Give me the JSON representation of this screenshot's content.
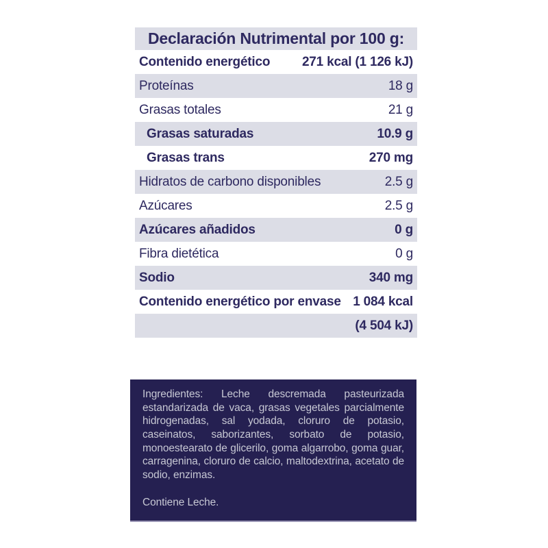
{
  "colors": {
    "text_navy": "#2e2960",
    "row_shaded_bg": "#dcdde6",
    "ingredients_box_bg": "#252051",
    "ingredients_text": "#c7c8d4",
    "page_bg": "#ffffff"
  },
  "nutrition_table": {
    "title": "Declaración Nutrimental por 100 g:",
    "rows": [
      {
        "label": "Contenido energético",
        "value": "271 kcal (1 126 kJ)",
        "bold": true,
        "shaded": false,
        "indent": false
      },
      {
        "label": "Proteínas",
        "value": "18 g",
        "bold": false,
        "shaded": true,
        "indent": false
      },
      {
        "label": "Grasas totales",
        "value": "21 g",
        "bold": false,
        "shaded": false,
        "indent": false
      },
      {
        "label": "Grasas saturadas",
        "value": "10.9 g",
        "bold": true,
        "shaded": true,
        "indent": true
      },
      {
        "label": "Grasas trans",
        "value": "270 mg",
        "bold": true,
        "shaded": false,
        "indent": true
      },
      {
        "label": "Hidratos de carbono disponibles",
        "value": "2.5 g",
        "bold": false,
        "shaded": true,
        "indent": false
      },
      {
        "label": "Azúcares",
        "value": "2.5 g",
        "bold": false,
        "shaded": false,
        "indent": false
      },
      {
        "label": "Azúcares añadidos",
        "value": "0 g",
        "bold": true,
        "shaded": true,
        "indent": false
      },
      {
        "label": "Fibra dietética",
        "value": "0 g",
        "bold": false,
        "shaded": false,
        "indent": false
      },
      {
        "label": "Sodio",
        "value": "340 mg",
        "bold": true,
        "shaded": true,
        "indent": false
      },
      {
        "label": "Contenido energético por envase",
        "value": "1 084 kcal",
        "bold": true,
        "shaded": false,
        "indent": false
      },
      {
        "label": "",
        "value": "(4 504 kJ)",
        "bold": true,
        "shaded": true,
        "indent": false
      }
    ]
  },
  "ingredients": {
    "text": "Ingredientes: Leche descremada pasteurizada estandarizada de vaca, grasas vegetales parcialmente hidrogenadas, sal yodada, cloruro de potasio, caseinatos, saborizantes, sorbato de potasio, monoestearato de glicerilo, goma algarrobo, goma guar, carragenina, cloruro de calcio, maltodextrina, acetato de sodio, enzimas.",
    "allergen": "Contiene Leche."
  }
}
